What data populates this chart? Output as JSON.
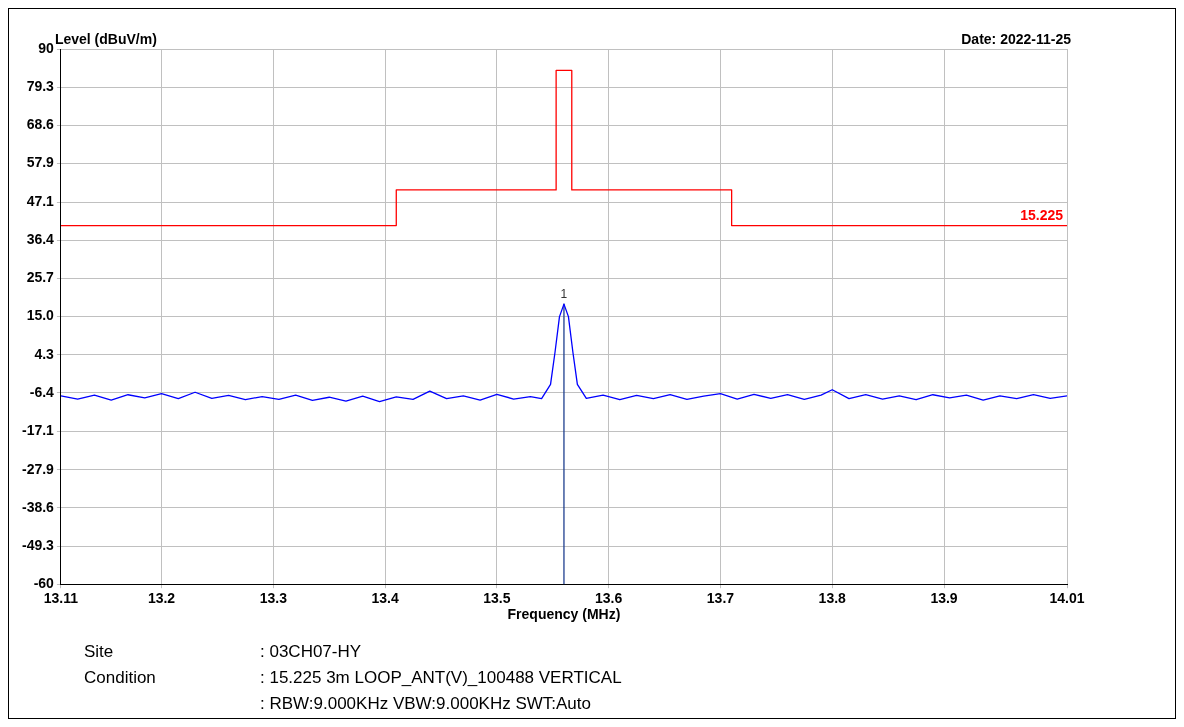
{
  "chart_data": {
    "type": "line",
    "ylabel": "Level (dBuV/m)",
    "xlabel": "Frequency (MHz)",
    "xlim": [
      13.11,
      14.01
    ],
    "xticks": [
      13.11,
      13.2,
      13.3,
      13.4,
      13.5,
      13.6,
      13.7,
      13.8,
      13.9,
      14.01
    ],
    "ylim": [
      -60,
      90
    ],
    "yticks": [
      -60,
      -49.3,
      -38.6,
      -27.9,
      -17.1,
      -6.4,
      4.3,
      {
        "value": 15,
        "label": "15.0"
      },
      25.7,
      36.4,
      47.1,
      57.9,
      68.6,
      79.3,
      90
    ],
    "grid": true,
    "legend": false,
    "series": [
      {
        "name": "15.225",
        "color": "#ff0000",
        "x": [
          13.11,
          13.41,
          13.41,
          13.553,
          13.553,
          13.567,
          13.567,
          13.71,
          13.71,
          14.01
        ],
        "values": [
          40.5,
          40.5,
          50.5,
          50.5,
          84,
          84,
          50.5,
          50.5,
          40.5,
          40.5
        ]
      },
      {
        "color": "#0000ff",
        "x": [
          13.11,
          13.125,
          13.14,
          13.155,
          13.17,
          13.185,
          13.2,
          13.215,
          13.23,
          13.245,
          13.26,
          13.275,
          13.29,
          13.305,
          13.32,
          13.335,
          13.35,
          13.365,
          13.38,
          13.395,
          13.41,
          13.425,
          13.44,
          13.455,
          13.47,
          13.485,
          13.5,
          13.515,
          13.53,
          13.54,
          13.548,
          13.552,
          13.556,
          13.56,
          13.564,
          13.568,
          13.572,
          13.58,
          13.595,
          13.61,
          13.625,
          13.64,
          13.655,
          13.67,
          13.685,
          13.7,
          13.715,
          13.73,
          13.745,
          13.76,
          13.775,
          13.79,
          13.8,
          13.815,
          13.83,
          13.845,
          13.86,
          13.875,
          13.89,
          13.905,
          13.92,
          13.935,
          13.95,
          13.965,
          13.98,
          13.995,
          14.01
        ],
        "values": [
          -7.2,
          -8.1,
          -7.0,
          -8.4,
          -6.9,
          -7.8,
          -6.6,
          -8.0,
          -6.2,
          -7.9,
          -7.1,
          -8.3,
          -7.4,
          -8.2,
          -7.0,
          -8.5,
          -7.6,
          -8.7,
          -7.3,
          -8.8,
          -7.5,
          -8.2,
          -5.9,
          -8.0,
          -7.2,
          -8.4,
          -6.8,
          -8.1,
          -7.4,
          -8.0,
          -4.0,
          5.0,
          15.0,
          18.5,
          15.0,
          5.0,
          -4.0,
          -7.9,
          -7.0,
          -8.3,
          -7.1,
          -8.0,
          -6.9,
          -8.2,
          -7.3,
          -6.6,
          -8.1,
          -6.8,
          -7.9,
          -6.9,
          -8.2,
          -7.0,
          -5.5,
          -8.0,
          -6.9,
          -8.1,
          -7.2,
          -8.3,
          -6.9,
          -7.8,
          -7.0,
          -8.4,
          -7.2,
          -8.0,
          -6.9,
          -7.9,
          -7.2
        ]
      },
      {
        "color": "#1f3f8f",
        "x": [
          13.56,
          13.56
        ],
        "values": [
          18.5,
          -60
        ]
      }
    ],
    "annotations": [
      "Date: 2022-11-25",
      {
        "text": "1",
        "x": 13.56,
        "y": 18.5
      },
      "Site",
      ": 03CH07-HY",
      "Condition",
      ": 15.225 3m LOOP_ANT(V)_100488 VERTICAL",
      ": RBW:9.000KHz VBW:9.000KHz SWT:Auto"
    ]
  }
}
